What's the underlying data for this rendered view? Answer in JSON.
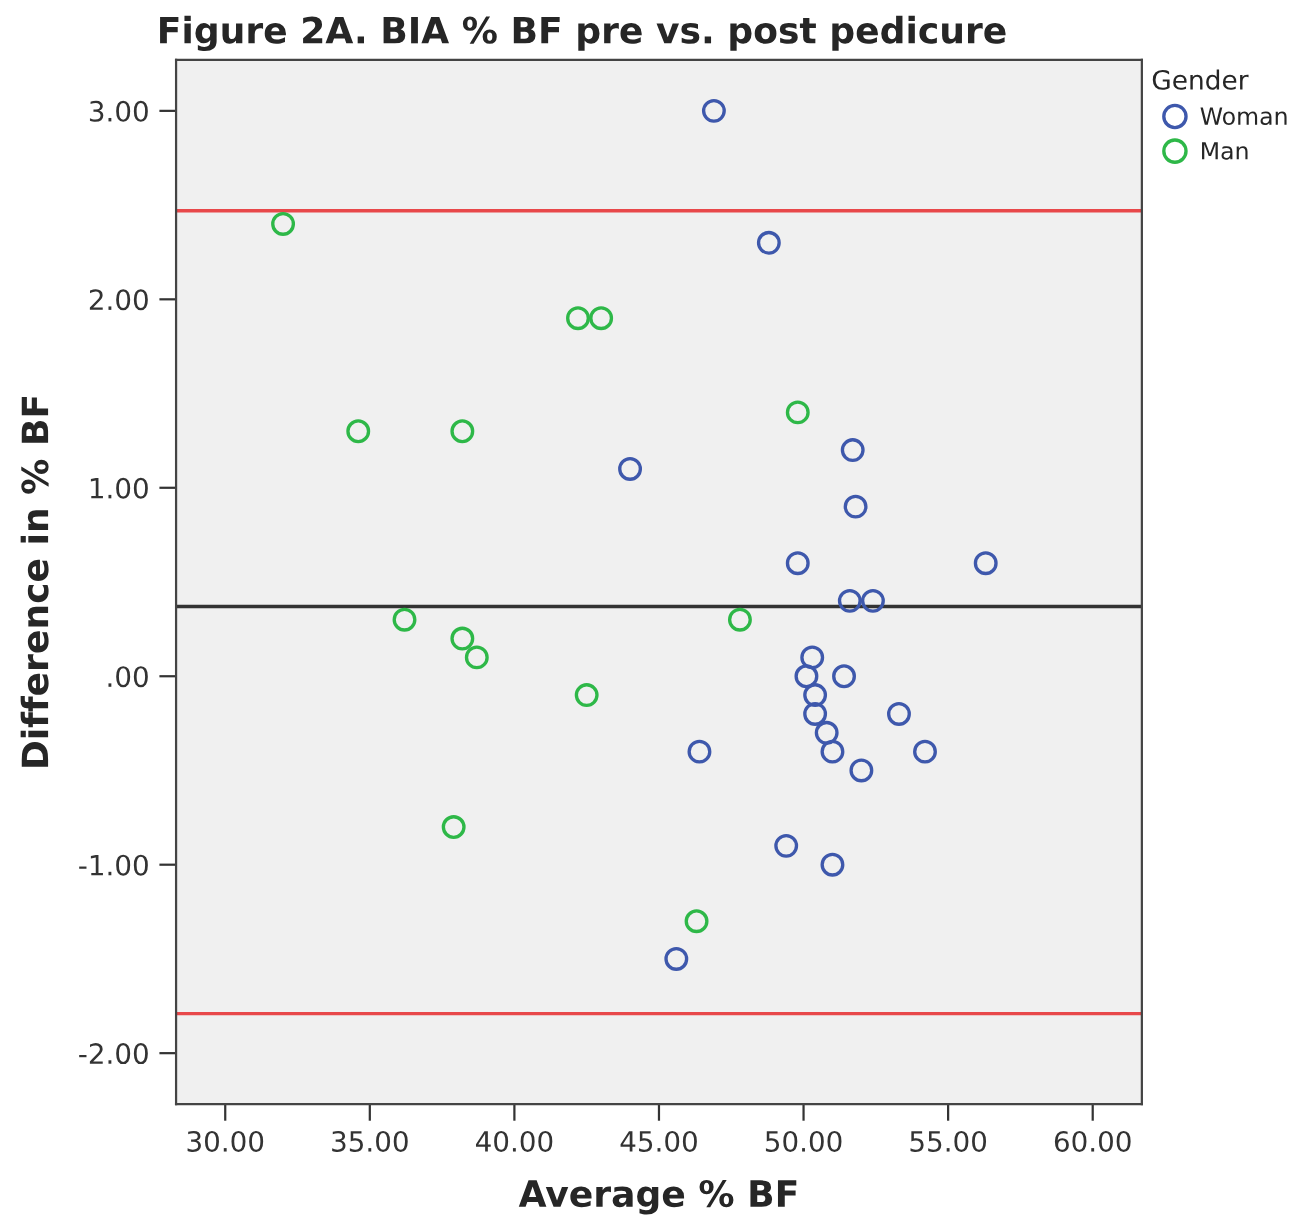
{
  "chart_data": {
    "type": "scatter",
    "title": "Figure 2A. BIA % BF pre vs. post pedicure",
    "xlabel": "Average % BF",
    "ylabel": "Difference in % BF",
    "legend_title": "Gender",
    "legend": "top right",
    "marker": "circle",
    "grid": false,
    "xlim": [
      28.3,
      61.7
    ],
    "ylim": [
      -2.27,
      3.27
    ],
    "xticks": [
      {
        "value": 30,
        "label": "30.00"
      },
      {
        "value": 35,
        "label": "35.00"
      },
      {
        "value": 40,
        "label": "40.00"
      },
      {
        "value": 45,
        "label": "45.00"
      },
      {
        "value": 50,
        "label": "50.00"
      },
      {
        "value": 55,
        "label": "55.00"
      },
      {
        "value": 60,
        "label": "60.00"
      }
    ],
    "yticks": [
      {
        "value": -2,
        "label": "-2.00"
      },
      {
        "value": -1,
        "label": "-1.00"
      },
      {
        "value": 0,
        "label": ".00"
      },
      {
        "value": 1,
        "label": "1.00"
      },
      {
        "value": 2,
        "label": "2.00"
      },
      {
        "value": 3,
        "label": "3.00"
      }
    ],
    "ref_lines": [
      {
        "axis": "y",
        "value": 2.47,
        "label": null,
        "color": "#e8484a"
      },
      {
        "axis": "y",
        "value": 0.37,
        "label": null,
        "color": "#333333"
      },
      {
        "axis": "y",
        "value": -1.79,
        "label": null,
        "color": "#e8484a"
      }
    ],
    "series": [
      {
        "name": "Woman",
        "color": "#3e58ac",
        "x": [
          46.9,
          48.8,
          44.0,
          51.7,
          51.8,
          49.8,
          56.3,
          51.6,
          52.4,
          50.3,
          50.1,
          51.4,
          50.4,
          50.4,
          53.3,
          50.8,
          51.0,
          46.4,
          54.2,
          52.0,
          49.4,
          51.0,
          45.6
        ],
        "values": [
          3.0,
          2.3,
          1.1,
          1.2,
          0.9,
          0.6,
          0.6,
          0.4,
          0.4,
          0.1,
          0.0,
          0.0,
          -0.1,
          -0.2,
          -0.2,
          -0.3,
          -0.4,
          -0.4,
          -0.4,
          -0.5,
          -0.9,
          -1.0,
          -1.5
        ]
      },
      {
        "name": "Man",
        "color": "#2eb848",
        "x": [
          32.0,
          42.2,
          43.0,
          34.6,
          38.2,
          49.8,
          47.8,
          36.2,
          38.2,
          38.7,
          42.5,
          37.9,
          46.3
        ],
        "values": [
          2.4,
          1.9,
          1.9,
          1.3,
          1.3,
          1.4,
          0.3,
          0.3,
          0.2,
          0.1,
          -0.1,
          -0.8,
          -1.3
        ]
      }
    ]
  }
}
